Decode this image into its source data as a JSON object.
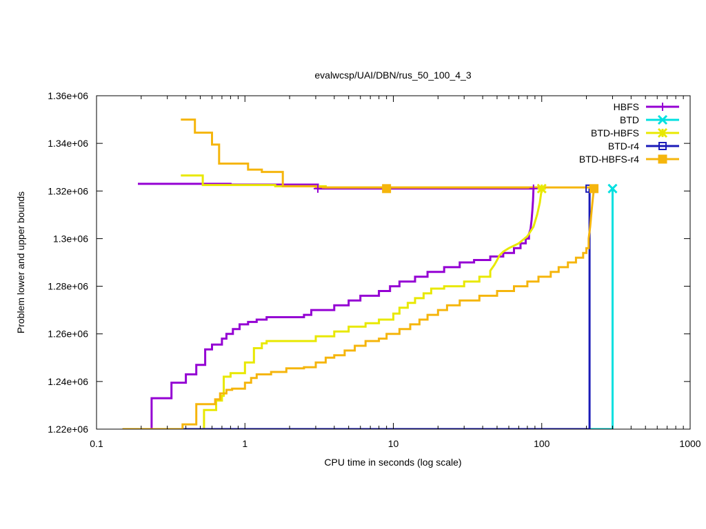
{
  "chart_data": {
    "type": "line",
    "title": "evalwcsp/UAI/DBN/rus_50_100_4_3",
    "xlabel": "CPU time in seconds (log scale)",
    "ylabel": "Problem lower and upper bounds",
    "xscale": "log",
    "xlim": [
      0.1,
      1000
    ],
    "ylim": [
      1220000,
      1360000
    ],
    "grid": false,
    "legend_position": "top-right",
    "x_ticks": [
      {
        "value": 0.1,
        "label": "0.1"
      },
      {
        "value": 1,
        "label": "1"
      },
      {
        "value": 10,
        "label": "10"
      },
      {
        "value": 100,
        "label": "100"
      },
      {
        "value": 1000,
        "label": "1000"
      }
    ],
    "y_ticks": [
      {
        "value": 1220000,
        "label": "1.22e+06"
      },
      {
        "value": 1240000,
        "label": "1.24e+06"
      },
      {
        "value": 1260000,
        "label": "1.26e+06"
      },
      {
        "value": 1280000,
        "label": "1.28e+06"
      },
      {
        "value": 1300000,
        "label": "1.3e+06"
      },
      {
        "value": 1320000,
        "label": "1.32e+06"
      },
      {
        "value": 1340000,
        "label": "1.34e+06"
      },
      {
        "value": 1360000,
        "label": "1.36e+06"
      }
    ],
    "series": [
      {
        "name": "HBFS",
        "color": "#9400d3",
        "marker": "plus",
        "marker_points": [
          [
            3.1,
            1321000
          ],
          [
            88,
            1321000
          ]
        ],
        "upper": [
          [
            0.19,
            1323000
          ],
          [
            0.8,
            1323000
          ],
          [
            0.8,
            1322700
          ],
          [
            3.1,
            1322700
          ],
          [
            3.1,
            1321000
          ],
          [
            88,
            1321000
          ]
        ],
        "lower": [
          [
            0.15,
            1220000
          ],
          [
            0.235,
            1220000
          ],
          [
            0.235,
            1233000
          ],
          [
            0.32,
            1233000
          ],
          [
            0.32,
            1239500
          ],
          [
            0.4,
            1239500
          ],
          [
            0.4,
            1243000
          ],
          [
            0.47,
            1243000
          ],
          [
            0.47,
            1247000
          ],
          [
            0.54,
            1247000
          ],
          [
            0.54,
            1253500
          ],
          [
            0.6,
            1253500
          ],
          [
            0.6,
            1255500
          ],
          [
            0.7,
            1255500
          ],
          [
            0.7,
            1258000
          ],
          [
            0.75,
            1258000
          ],
          [
            0.75,
            1260000
          ],
          [
            0.83,
            1260000
          ],
          [
            0.83,
            1262000
          ],
          [
            0.92,
            1262000
          ],
          [
            0.92,
            1264000
          ],
          [
            1.05,
            1264000
          ],
          [
            1.05,
            1265000
          ],
          [
            1.2,
            1265000
          ],
          [
            1.2,
            1266000
          ],
          [
            1.4,
            1266000
          ],
          [
            1.4,
            1267000
          ],
          [
            2.5,
            1267000
          ],
          [
            2.5,
            1268000
          ],
          [
            2.8,
            1268000
          ],
          [
            2.8,
            1270000
          ],
          [
            4,
            1270000
          ],
          [
            4,
            1272000
          ],
          [
            5,
            1272000
          ],
          [
            5,
            1274000
          ],
          [
            6,
            1274000
          ],
          [
            6,
            1276000
          ],
          [
            8,
            1276000
          ],
          [
            8,
            1278000
          ],
          [
            9.5,
            1278000
          ],
          [
            9.5,
            1280000
          ],
          [
            11,
            1280000
          ],
          [
            11,
            1282000
          ],
          [
            14,
            1282000
          ],
          [
            14,
            1284000
          ],
          [
            17,
            1284000
          ],
          [
            17,
            1286000
          ],
          [
            22,
            1286000
          ],
          [
            22,
            1288000
          ],
          [
            28,
            1288000
          ],
          [
            28,
            1290000
          ],
          [
            35,
            1290000
          ],
          [
            35,
            1291000
          ],
          [
            45,
            1291000
          ],
          [
            45,
            1292500
          ],
          [
            55,
            1292500
          ],
          [
            55,
            1294000
          ],
          [
            65,
            1294000
          ],
          [
            65,
            1296000
          ],
          [
            72,
            1296000
          ],
          [
            72,
            1298000
          ],
          [
            78,
            1298000
          ],
          [
            78,
            1300000
          ],
          [
            82,
            1300000
          ],
          [
            82,
            1302000
          ],
          [
            84,
            1304000
          ],
          [
            85.5,
            1308000
          ],
          [
            86.5,
            1312000
          ],
          [
            87.3,
            1316000
          ],
          [
            88,
            1321000
          ]
        ]
      },
      {
        "name": "BTD",
        "color": "#00e0e0",
        "marker": "x",
        "marker_points": [
          [
            300,
            1321000
          ]
        ],
        "upper": [
          [
            300,
            1321000
          ]
        ],
        "lower": [
          [
            0.15,
            1220000
          ],
          [
            300,
            1220000
          ],
          [
            300,
            1321000
          ]
        ]
      },
      {
        "name": "BTD-HBFS",
        "color": "#e8e800",
        "marker": "star",
        "marker_points": [
          [
            100,
            1321000
          ]
        ],
        "upper": [
          [
            0.37,
            1326500
          ],
          [
            0.52,
            1326500
          ],
          [
            0.52,
            1322500
          ],
          [
            1.6,
            1322500
          ],
          [
            1.6,
            1322000
          ],
          [
            3.5,
            1322000
          ],
          [
            3.5,
            1321500
          ],
          [
            100,
            1321500
          ]
        ],
        "lower": [
          [
            0.15,
            1220000
          ],
          [
            0.53,
            1220000
          ],
          [
            0.53,
            1228000
          ],
          [
            0.64,
            1228000
          ],
          [
            0.64,
            1232000
          ],
          [
            0.7,
            1232000
          ],
          [
            0.7,
            1234000
          ],
          [
            0.72,
            1234000
          ],
          [
            0.72,
            1242000
          ],
          [
            0.8,
            1242000
          ],
          [
            0.8,
            1243500
          ],
          [
            1,
            1243500
          ],
          [
            1,
            1248000
          ],
          [
            1.15,
            1248000
          ],
          [
            1.15,
            1254000
          ],
          [
            1.3,
            1254000
          ],
          [
            1.3,
            1256000
          ],
          [
            1.4,
            1256000
          ],
          [
            1.4,
            1257000
          ],
          [
            3,
            1257000
          ],
          [
            3,
            1259000
          ],
          [
            4,
            1259000
          ],
          [
            4,
            1261000
          ],
          [
            5,
            1261000
          ],
          [
            5,
            1263000
          ],
          [
            6.5,
            1263000
          ],
          [
            6.5,
            1264500
          ],
          [
            8,
            1264500
          ],
          [
            8,
            1266000
          ],
          [
            10,
            1266000
          ],
          [
            10,
            1268500
          ],
          [
            11,
            1268500
          ],
          [
            11,
            1271000
          ],
          [
            12.5,
            1271000
          ],
          [
            12.5,
            1273000
          ],
          [
            14,
            1273000
          ],
          [
            14,
            1275000
          ],
          [
            16,
            1275000
          ],
          [
            16,
            1277000
          ],
          [
            18,
            1277000
          ],
          [
            18,
            1279000
          ],
          [
            22,
            1279000
          ],
          [
            22,
            1280000
          ],
          [
            30,
            1280000
          ],
          [
            30,
            1282000
          ],
          [
            38,
            1282000
          ],
          [
            38,
            1284000
          ],
          [
            45,
            1284000
          ],
          [
            45,
            1286500
          ],
          [
            48,
            1289000
          ],
          [
            50,
            1291000
          ],
          [
            52,
            1293000
          ],
          [
            55,
            1294500
          ],
          [
            60,
            1296000
          ],
          [
            70,
            1298000
          ],
          [
            80,
            1301000
          ],
          [
            88,
            1305000
          ],
          [
            93,
            1310000
          ],
          [
            97,
            1315000
          ],
          [
            100,
            1321000
          ]
        ]
      },
      {
        "name": "BTD-r4",
        "color": "#1a1ab8",
        "marker": "square",
        "marker_points": [
          [
            210,
            1321000
          ]
        ],
        "upper": [
          [
            210,
            1321000
          ]
        ],
        "lower": [
          [
            0.15,
            1220000
          ],
          [
            210,
            1220000
          ],
          [
            210,
            1321000
          ]
        ]
      },
      {
        "name": "BTD-HBFS-r4",
        "color": "#f5b50c",
        "marker": "filled-square",
        "marker_points": [
          [
            9,
            1321000
          ],
          [
            225,
            1321000
          ]
        ],
        "upper": [
          [
            0.37,
            1350000
          ],
          [
            0.46,
            1350000
          ],
          [
            0.46,
            1344500
          ],
          [
            0.6,
            1344500
          ],
          [
            0.6,
            1339500
          ],
          [
            0.67,
            1339500
          ],
          [
            0.67,
            1331500
          ],
          [
            1.05,
            1331500
          ],
          [
            1.05,
            1329000
          ],
          [
            1.3,
            1329000
          ],
          [
            1.3,
            1328000
          ],
          [
            1.8,
            1328000
          ],
          [
            1.8,
            1322000
          ],
          [
            3,
            1322000
          ],
          [
            3,
            1321500
          ],
          [
            225,
            1321500
          ]
        ],
        "lower": [
          [
            0.15,
            1220000
          ],
          [
            0.38,
            1220000
          ],
          [
            0.38,
            1222000
          ],
          [
            0.47,
            1222000
          ],
          [
            0.47,
            1230500
          ],
          [
            0.63,
            1230500
          ],
          [
            0.63,
            1232500
          ],
          [
            0.68,
            1232500
          ],
          [
            0.68,
            1235000
          ],
          [
            0.75,
            1235000
          ],
          [
            0.75,
            1236500
          ],
          [
            0.82,
            1236500
          ],
          [
            0.82,
            1237000
          ],
          [
            1,
            1237000
          ],
          [
            1,
            1239500
          ],
          [
            1.1,
            1239500
          ],
          [
            1.1,
            1241500
          ],
          [
            1.2,
            1241500
          ],
          [
            1.2,
            1243000
          ],
          [
            1.5,
            1243000
          ],
          [
            1.5,
            1244000
          ],
          [
            1.9,
            1244000
          ],
          [
            1.9,
            1245500
          ],
          [
            2.5,
            1245500
          ],
          [
            2.5,
            1246000
          ],
          [
            3,
            1246000
          ],
          [
            3,
            1248000
          ],
          [
            3.5,
            1248000
          ],
          [
            3.5,
            1250000
          ],
          [
            4,
            1250000
          ],
          [
            4,
            1251000
          ],
          [
            4.7,
            1251000
          ],
          [
            4.7,
            1253000
          ],
          [
            5.5,
            1253000
          ],
          [
            5.5,
            1255000
          ],
          [
            6.5,
            1255000
          ],
          [
            6.5,
            1257000
          ],
          [
            8,
            1257000
          ],
          [
            8,
            1258000
          ],
          [
            9,
            1258000
          ],
          [
            9,
            1260000
          ],
          [
            11,
            1260000
          ],
          [
            11,
            1262000
          ],
          [
            13,
            1262000
          ],
          [
            13,
            1264000
          ],
          [
            15,
            1264000
          ],
          [
            15,
            1266000
          ],
          [
            17,
            1266000
          ],
          [
            17,
            1268000
          ],
          [
            20,
            1268000
          ],
          [
            20,
            1270000
          ],
          [
            23,
            1270000
          ],
          [
            23,
            1272000
          ],
          [
            28,
            1272000
          ],
          [
            28,
            1274000
          ],
          [
            38,
            1274000
          ],
          [
            38,
            1276000
          ],
          [
            50,
            1276000
          ],
          [
            50,
            1278000
          ],
          [
            65,
            1278000
          ],
          [
            65,
            1280000
          ],
          [
            80,
            1280000
          ],
          [
            80,
            1282000
          ],
          [
            95,
            1282000
          ],
          [
            95,
            1284000
          ],
          [
            115,
            1284000
          ],
          [
            115,
            1286000
          ],
          [
            130,
            1286000
          ],
          [
            130,
            1288000
          ],
          [
            150,
            1288000
          ],
          [
            150,
            1290000
          ],
          [
            170,
            1290000
          ],
          [
            170,
            1292000
          ],
          [
            190,
            1292000
          ],
          [
            190,
            1294000
          ],
          [
            200,
            1294000
          ],
          [
            200,
            1296000
          ],
          [
            207,
            1296000
          ],
          [
            207,
            1300000
          ],
          [
            212,
            1305000
          ],
          [
            217,
            1312000
          ],
          [
            221,
            1317000
          ],
          [
            225,
            1321000
          ]
        ]
      }
    ]
  }
}
